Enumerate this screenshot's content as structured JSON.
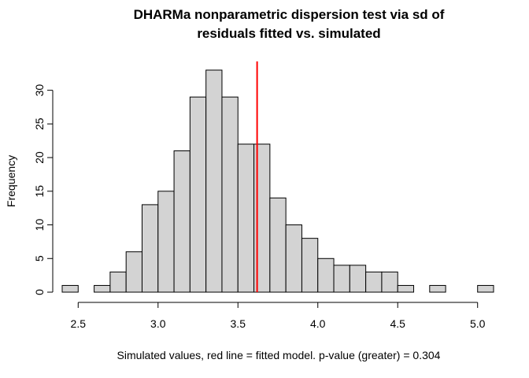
{
  "chart_data": {
    "type": "bar",
    "title_line1": "DHARMa nonparametric dispersion test via sd of",
    "title_line2": "residuals fitted vs. simulated",
    "xlabel": "Simulated values, red line = fitted model. p-value (greater) = 0.304",
    "ylabel": "Frequency",
    "bin_start": 2.4,
    "bin_width": 0.1,
    "values": [
      1,
      0,
      1,
      3,
      6,
      13,
      15,
      21,
      29,
      33,
      29,
      22,
      22,
      14,
      10,
      8,
      5,
      4,
      4,
      3,
      3,
      1,
      0,
      1,
      0,
      0,
      1
    ],
    "xlim": [
      2.4,
      5.1
    ],
    "ylim": [
      0,
      33
    ],
    "x_ticks": [
      "2.5",
      "3.0",
      "3.5",
      "4.0",
      "4.5",
      "5.0"
    ],
    "y_ticks": [
      "0",
      "5",
      "10",
      "15",
      "20",
      "25",
      "30"
    ],
    "fitted_value": 3.62,
    "bar_color": "#d3d3d3",
    "line_color": "#ff0000",
    "grid": false,
    "legend": "none"
  }
}
